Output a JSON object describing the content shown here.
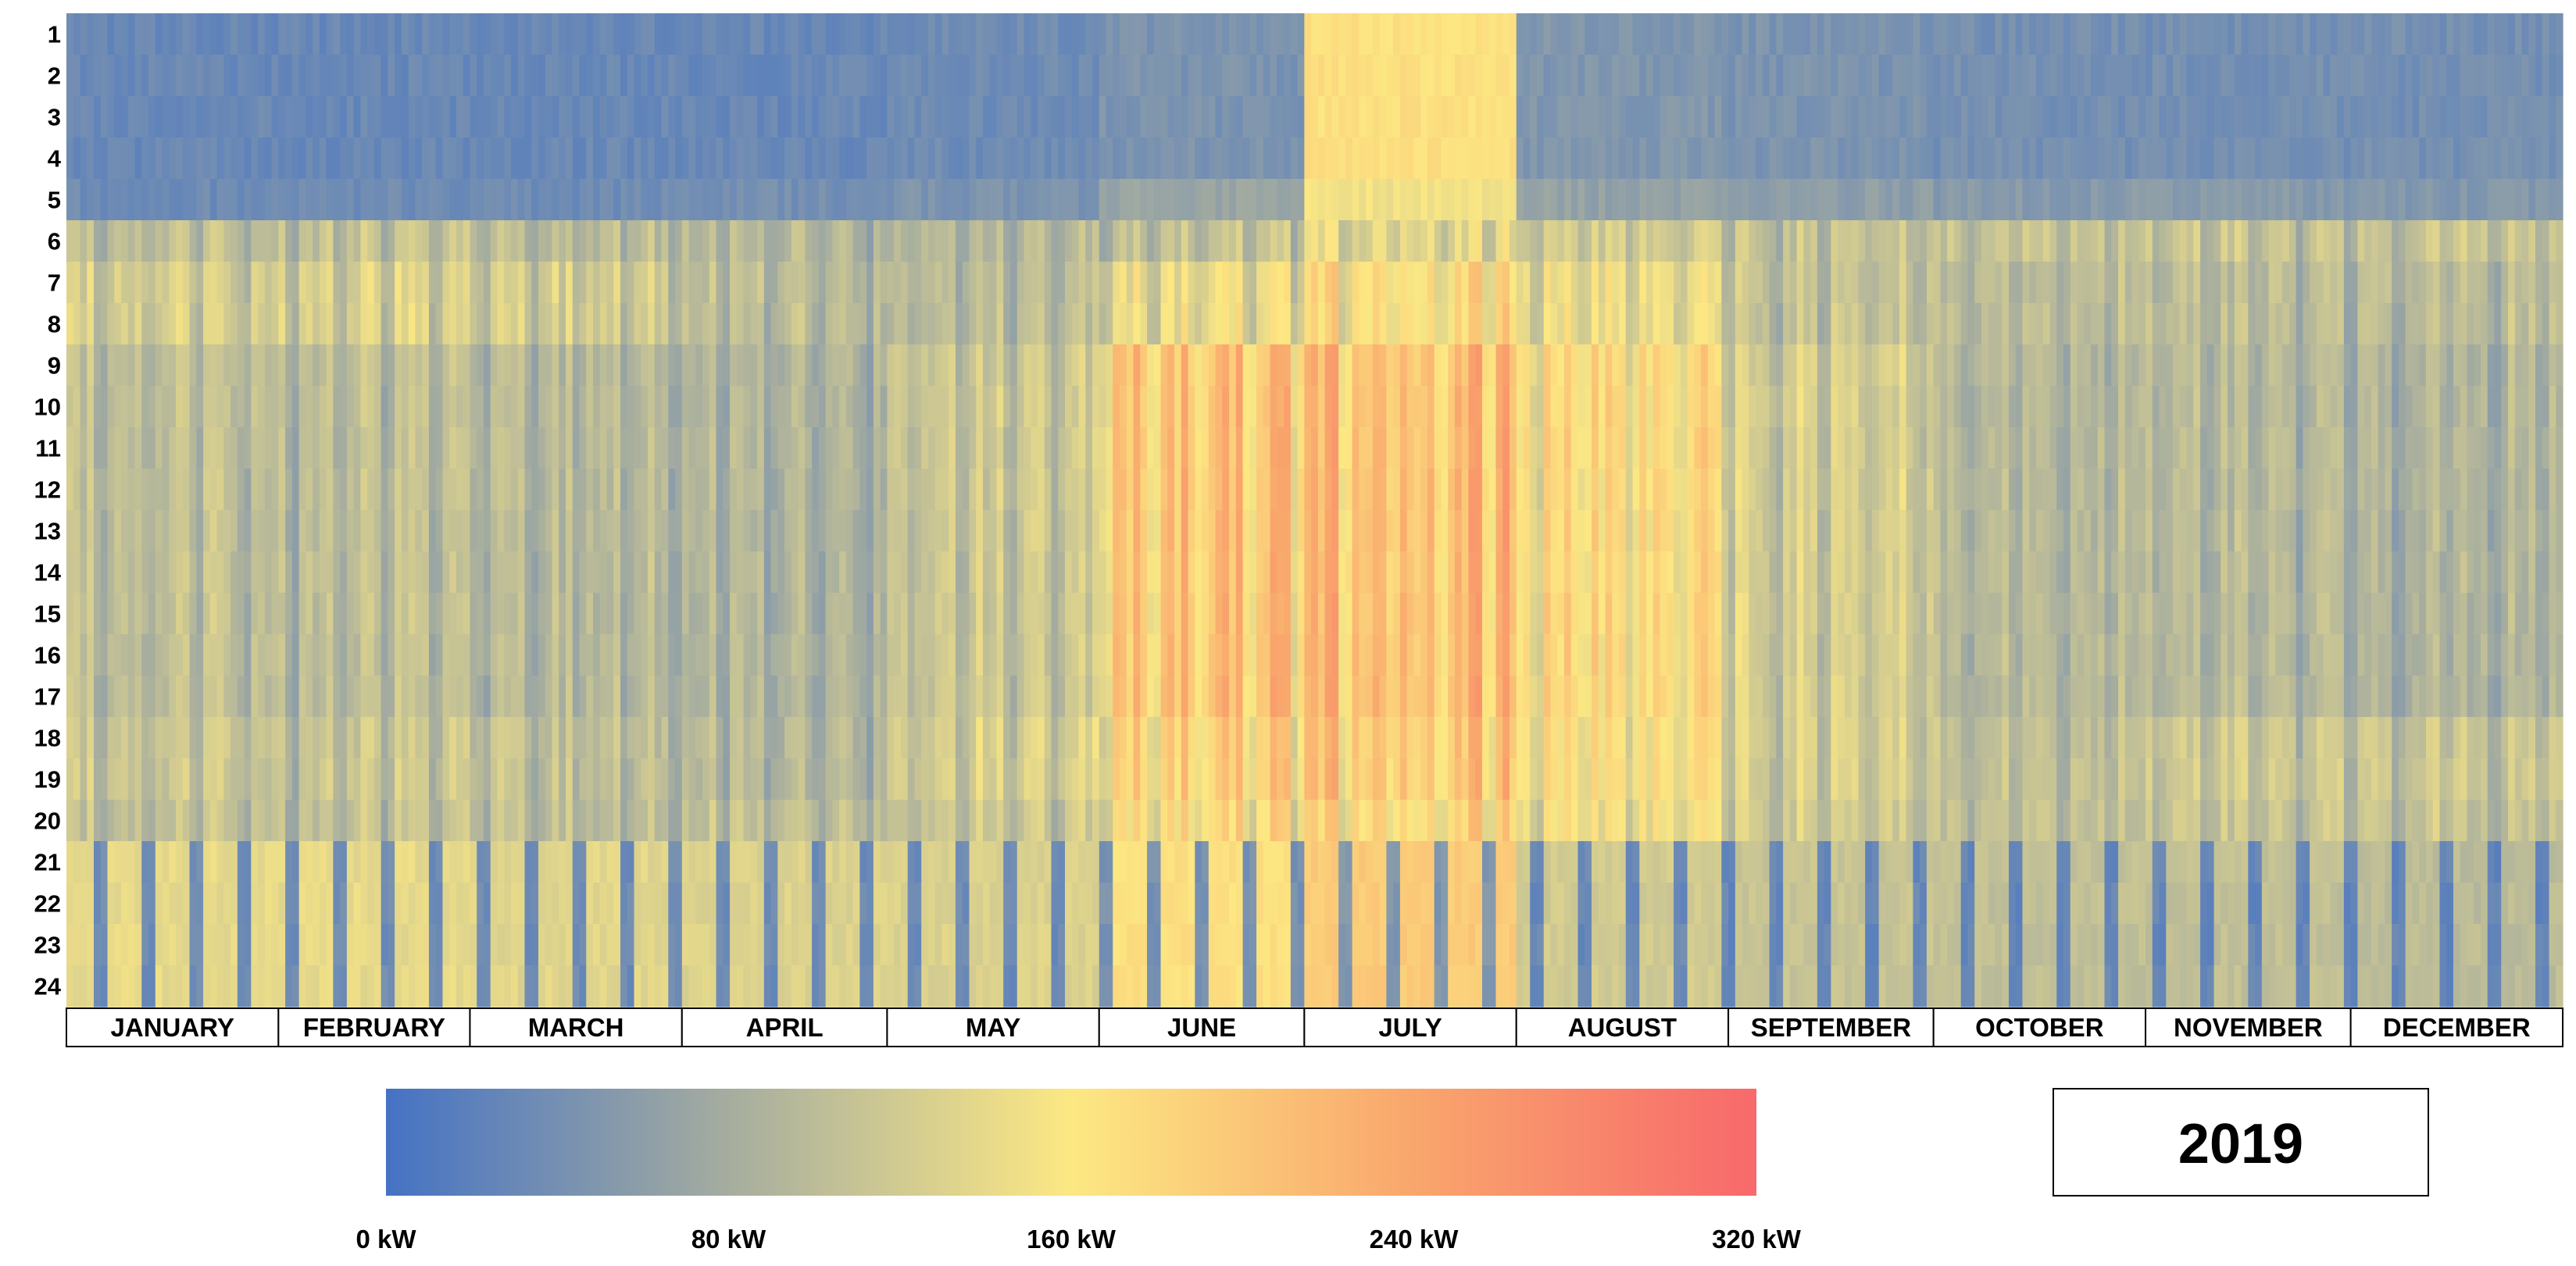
{
  "chart_data": {
    "type": "heatmap",
    "title": "",
    "year": "2019",
    "unit": "kW",
    "x_axis": {
      "labels": [
        "JANUARY",
        "FEBRUARY",
        "MARCH",
        "APRIL",
        "MAY",
        "JUNE",
        "JULY",
        "AUGUST",
        "SEPTEMBER",
        "OCTOBER",
        "NOVEMBER",
        "DECEMBER"
      ],
      "days_per_month": [
        31,
        28,
        31,
        30,
        31,
        30,
        31,
        31,
        30,
        31,
        30,
        31
      ]
    },
    "y_axis": {
      "labels": [
        "1",
        "2",
        "3",
        "4",
        "5",
        "6",
        "7",
        "8",
        "9",
        "10",
        "11",
        "12",
        "13",
        "14",
        "15",
        "16",
        "17",
        "18",
        "19",
        "20",
        "21",
        "22",
        "23",
        "24"
      ]
    },
    "colorbar": {
      "range": [
        0,
        320
      ],
      "ticks": [
        "0 kW",
        "80 kW",
        "160 kW",
        "240 kW",
        "320 kW"
      ],
      "tick_values": [
        0,
        80,
        160,
        240,
        320
      ],
      "colors": [
        "#4472c4",
        "#a6ad9f",
        "#fce883",
        "#f9a66c",
        "#f8696b"
      ]
    },
    "monthly_hourly_profile_kw": [
      {
        "month": "JANUARY",
        "night": 30,
        "h5": 35,
        "h6": 110,
        "h7_8": 130,
        "day": 110,
        "h18_19": 120,
        "h20": 110,
        "h21_24": 140
      },
      {
        "month": "FEBRUARY",
        "night": 30,
        "h5": 35,
        "h6": 110,
        "h7_8": 130,
        "day": 105,
        "h18_19": 115,
        "h20": 110,
        "h21_24": 140
      },
      {
        "month": "MARCH",
        "night": 30,
        "h5": 35,
        "h6": 105,
        "h7_8": 125,
        "day": 100,
        "h18_19": 110,
        "h20": 105,
        "h21_24": 135
      },
      {
        "month": "APRIL",
        "night": 30,
        "h5": 40,
        "h6": 100,
        "h7_8": 105,
        "day": 95,
        "h18_19": 100,
        "h20": 110,
        "h21_24": 130
      },
      {
        "month": "MAY",
        "night": 35,
        "h5": 45,
        "h6": 100,
        "h7_8": 105,
        "day": 120,
        "h18_19": 130,
        "h20": 120,
        "h21_24": 130
      },
      {
        "month": "JUNE",
        "night": 45,
        "h5": 70,
        "h6": 110,
        "h7_8": 150,
        "day": 210,
        "h18_19": 190,
        "h20": 175,
        "h21_24": 170
      },
      {
        "month": "JULY",
        "night": 170,
        "h5": 150,
        "h6": 145,
        "h7_8": 180,
        "day": 225,
        "h18_19": 210,
        "h20": 190,
        "h21_24": 195
      },
      {
        "month": "AUGUST",
        "night": 50,
        "h5": 65,
        "h6": 125,
        "h7_8": 150,
        "day": 180,
        "h18_19": 170,
        "h20": 160,
        "h21_24": 120
      },
      {
        "month": "SEPTEMBER",
        "night": 45,
        "h5": 60,
        "h6": 115,
        "h7_8": 115,
        "day": 130,
        "h18_19": 130,
        "h20": 125,
        "h21_24": 110
      },
      {
        "month": "OCTOBER",
        "night": 40,
        "h5": 55,
        "h6": 115,
        "h7_8": 105,
        "day": 100,
        "h18_19": 110,
        "h20": 110,
        "h21_24": 105
      },
      {
        "month": "NOVEMBER",
        "night": 40,
        "h5": 55,
        "h6": 115,
        "h7_8": 105,
        "day": 100,
        "h18_19": 120,
        "h20": 115,
        "h21_24": 105
      },
      {
        "month": "DECEMBER",
        "night": 40,
        "h5": 50,
        "h6": 115,
        "h7_8": 105,
        "day": 95,
        "h18_19": 120,
        "h20": 115,
        "h21_24": 100
      }
    ]
  }
}
